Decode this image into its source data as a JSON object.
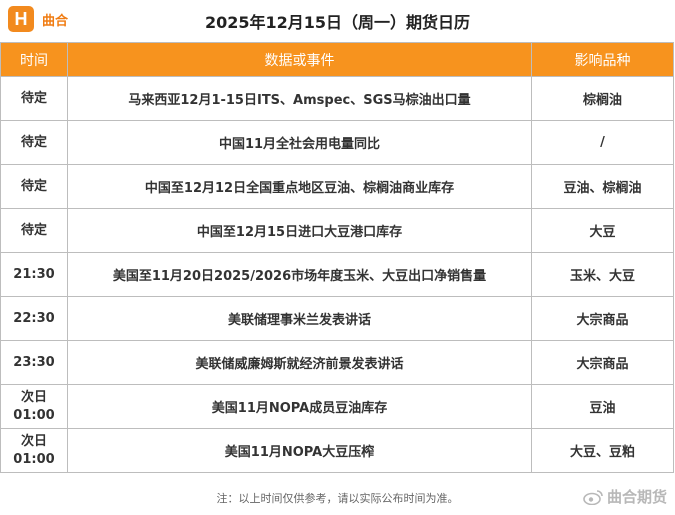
{
  "brand": {
    "logo_letter": "H",
    "name": "曲合"
  },
  "title": "2025年12月15日（周一）期货日历",
  "table": {
    "headers": [
      "时间",
      "数据或事件",
      "影响品种"
    ],
    "rows": [
      {
        "time": "待定",
        "event": "马来西亚12月1-15日ITS、Amspec、SGS马棕油出口量",
        "product": "棕榈油"
      },
      {
        "time": "待定",
        "event": "中国11月全社会用电量同比",
        "product": "/"
      },
      {
        "time": "待定",
        "event": "中国至12月12日全国重点地区豆油、棕榈油商业库存",
        "product": "豆油、棕榈油"
      },
      {
        "time": "待定",
        "event": "中国至12月15日进口大豆港口库存",
        "product": "大豆"
      },
      {
        "time": "21:30",
        "event": "美国至11月20日2025/2026市场年度玉米、大豆出口净销售量",
        "product": "玉米、大豆"
      },
      {
        "time": "22:30",
        "event": "美联储理事米兰发表讲话",
        "product": "大宗商品"
      },
      {
        "time": "23:30",
        "event": "美联储威廉姆斯就经济前景发表讲话",
        "product": "大宗商品"
      },
      {
        "time": "次日\n01:00",
        "event": "美国11月NOPA成员豆油库存",
        "product": "豆油"
      },
      {
        "time": "次日\n01:00",
        "event": "美国11月NOPA大豆压榨",
        "product": "大豆、豆粕"
      }
    ]
  },
  "note": "注：以上时间仅供参考，请以实际公布时间为准。",
  "watermark": "曲合期货",
  "colors": {
    "header_bg": "#f7931e",
    "product_text": "#f05a0f",
    "brand": "#f28a1e"
  }
}
